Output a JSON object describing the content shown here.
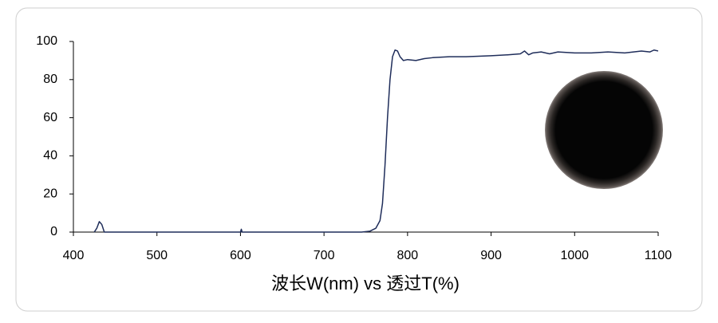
{
  "chart_data": {
    "type": "line",
    "x_label": "波长W(nm) vs 透过T(%)",
    "x": [
      425,
      428,
      431,
      434,
      437,
      445,
      500,
      600,
      601,
      602,
      700,
      745,
      755,
      762,
      767,
      770,
      773,
      776,
      779,
      782,
      785,
      788,
      791,
      795,
      800,
      810,
      820,
      830,
      850,
      870,
      900,
      920,
      935,
      940,
      945,
      950,
      960,
      970,
      980,
      1000,
      1020,
      1040,
      1060,
      1080,
      1090,
      1095,
      1100
    ],
    "values": [
      0,
      2,
      5.5,
      4,
      0,
      0,
      0,
      0,
      1.5,
      0,
      0,
      0,
      0.5,
      2,
      6,
      15,
      35,
      60,
      80,
      92,
      95.5,
      95,
      92,
      90,
      90.5,
      90,
      91,
      91.5,
      92,
      92,
      92.5,
      93,
      93.5,
      95,
      93,
      94,
      94.5,
      93.5,
      94.5,
      94,
      94,
      94.5,
      94,
      95,
      94.5,
      95.5,
      95
    ],
    "color": "#1f2d5a",
    "xlim": [
      400,
      1100
    ],
    "xticks": [
      400,
      500,
      600,
      700,
      800,
      900,
      1000,
      1100
    ],
    "ylim": [
      0,
      100
    ],
    "yticks": [
      0,
      20,
      40,
      60,
      80,
      100
    ]
  }
}
